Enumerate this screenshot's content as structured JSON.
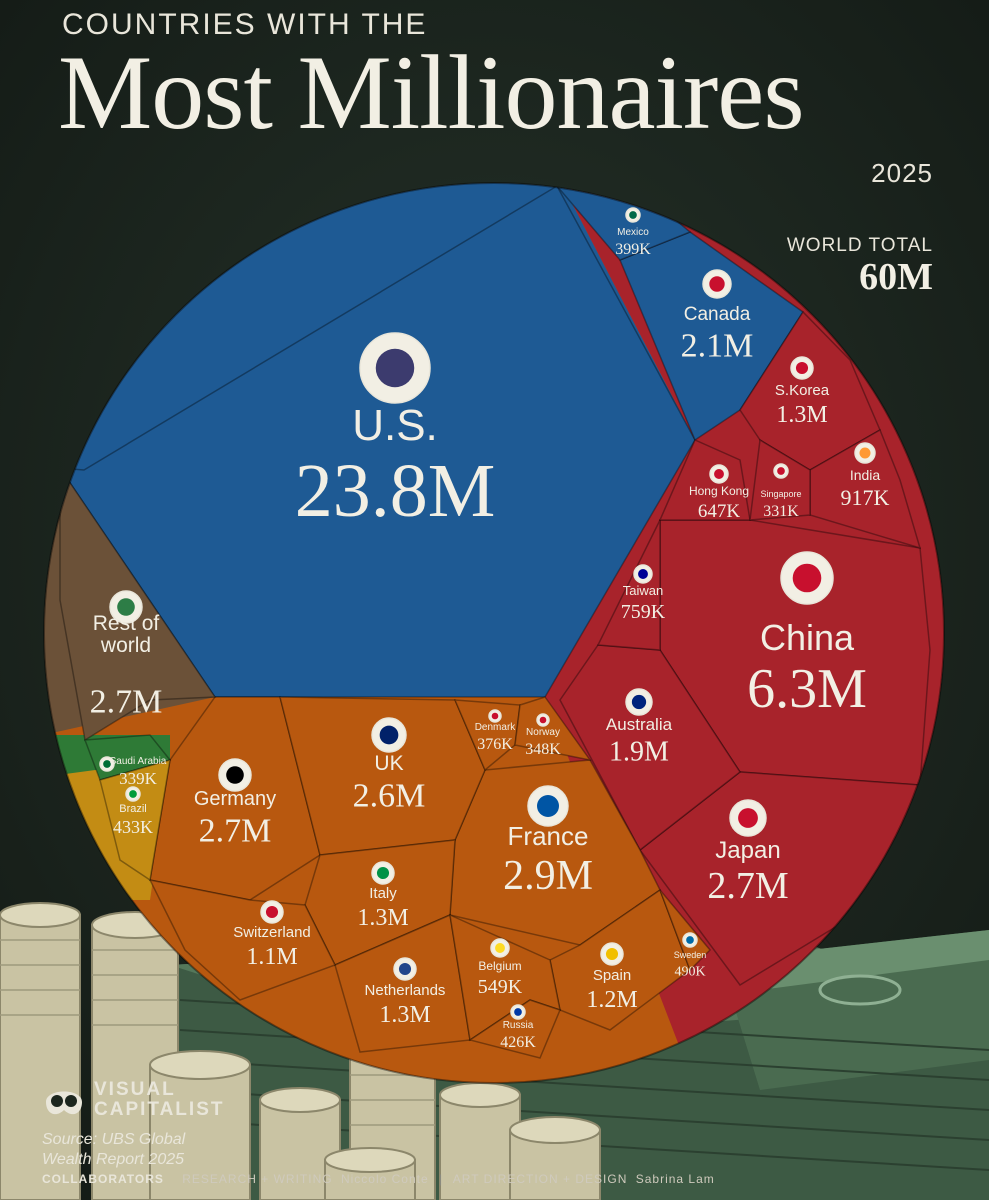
{
  "header": {
    "kicker": "COUNTRIES WITH THE",
    "title": "Most Millionaires",
    "year": "2025",
    "world_total_label": "WORLD TOTAL",
    "world_total_value": "60M"
  },
  "footer": {
    "logo_text": "VISUAL CAPITALIST",
    "source": "Source: UBS Global Wealth Report 2025",
    "collaborators_label": "COLLABORATORS",
    "research_label": "RESEARCH + WRITING",
    "research_name": "Niccolo Conte",
    "design_label": "ART DIRECTION + DESIGN",
    "design_name": "Sabrina Lam"
  },
  "colors": {
    "north_america": "#1e5a94",
    "asia": "#a8232b",
    "europe": "#b8580f",
    "rest_of_world": "#6b5138",
    "middle_east": "#2e7a36",
    "latin_america": "#c38c14",
    "text": "#f2efe4"
  },
  "chart_data": {
    "type": "voronoi-treemap",
    "unit": "millionaires",
    "total": 60000000,
    "cells": [
      {
        "name": "U.S.",
        "label": "23.8M",
        "value": 23800000,
        "group": "north_america",
        "icon": "us-flag-icon"
      },
      {
        "name": "Canada",
        "label": "2.1M",
        "value": 2100000,
        "group": "north_america",
        "icon": "canada-flag-icon"
      },
      {
        "name": "Mexico",
        "label": "399K",
        "value": 399000,
        "group": "north_america",
        "icon": "mexico-flag-icon"
      },
      {
        "name": "China",
        "label": "6.3M",
        "value": 6300000,
        "group": "asia",
        "icon": "china-flag-icon"
      },
      {
        "name": "Japan",
        "label": "2.7M",
        "value": 2700000,
        "group": "asia",
        "icon": "japan-flag-icon"
      },
      {
        "name": "Australia",
        "label": "1.9M",
        "value": 1900000,
        "group": "asia",
        "icon": "australia-flag-icon"
      },
      {
        "name": "S.Korea",
        "label": "1.3M",
        "value": 1300000,
        "group": "asia",
        "icon": "south-korea-flag-icon"
      },
      {
        "name": "India",
        "label": "917K",
        "value": 917000,
        "group": "asia",
        "icon": "india-flag-icon"
      },
      {
        "name": "Taiwan",
        "label": "759K",
        "value": 759000,
        "group": "asia",
        "icon": "taiwan-flag-icon"
      },
      {
        "name": "Hong Kong",
        "label": "647K",
        "value": 647000,
        "group": "asia",
        "icon": "hong-kong-flag-icon"
      },
      {
        "name": "Singapore",
        "label": "331K",
        "value": 331000,
        "group": "asia",
        "icon": "singapore-flag-icon"
      },
      {
        "name": "France",
        "label": "2.9M",
        "value": 2900000,
        "group": "europe",
        "icon": "france-flag-icon"
      },
      {
        "name": "Germany",
        "label": "2.7M",
        "value": 2700000,
        "group": "europe",
        "icon": "germany-flag-icon"
      },
      {
        "name": "UK",
        "label": "2.6M",
        "value": 2600000,
        "group": "europe",
        "icon": "uk-flag-icon"
      },
      {
        "name": "Italy",
        "label": "1.3M",
        "value": 1300000,
        "group": "europe",
        "icon": "italy-flag-icon"
      },
      {
        "name": "Netherlands",
        "label": "1.3M",
        "value": 1300000,
        "group": "europe",
        "icon": "netherlands-flag-icon"
      },
      {
        "name": "Spain",
        "label": "1.2M",
        "value": 1200000,
        "group": "europe",
        "icon": "spain-flag-icon"
      },
      {
        "name": "Switzerland",
        "label": "1.1M",
        "value": 1100000,
        "group": "europe",
        "icon": "switzerland-flag-icon"
      },
      {
        "name": "Belgium",
        "label": "549K",
        "value": 549000,
        "group": "europe",
        "icon": "belgium-flag-icon"
      },
      {
        "name": "Sweden",
        "label": "490K",
        "value": 490000,
        "group": "europe",
        "icon": "sweden-flag-icon"
      },
      {
        "name": "Russia",
        "label": "426K",
        "value": 426000,
        "group": "europe",
        "icon": "russia-flag-icon"
      },
      {
        "name": "Denmark",
        "label": "376K",
        "value": 376000,
        "group": "europe",
        "icon": "denmark-flag-icon"
      },
      {
        "name": "Norway",
        "label": "348K",
        "value": 348000,
        "group": "europe",
        "icon": "norway-flag-icon"
      },
      {
        "name": "Rest of world",
        "label": "2.7M",
        "value": 2700000,
        "group": "rest_of_world",
        "icon": "globe-icon"
      },
      {
        "name": "Saudi Arabia",
        "label": "339K",
        "value": 339000,
        "group": "middle_east",
        "icon": "saudi-arabia-flag-icon"
      },
      {
        "name": "Brazil",
        "label": "433K",
        "value": 433000,
        "group": "latin_america",
        "icon": "brazil-flag-icon"
      }
    ]
  }
}
